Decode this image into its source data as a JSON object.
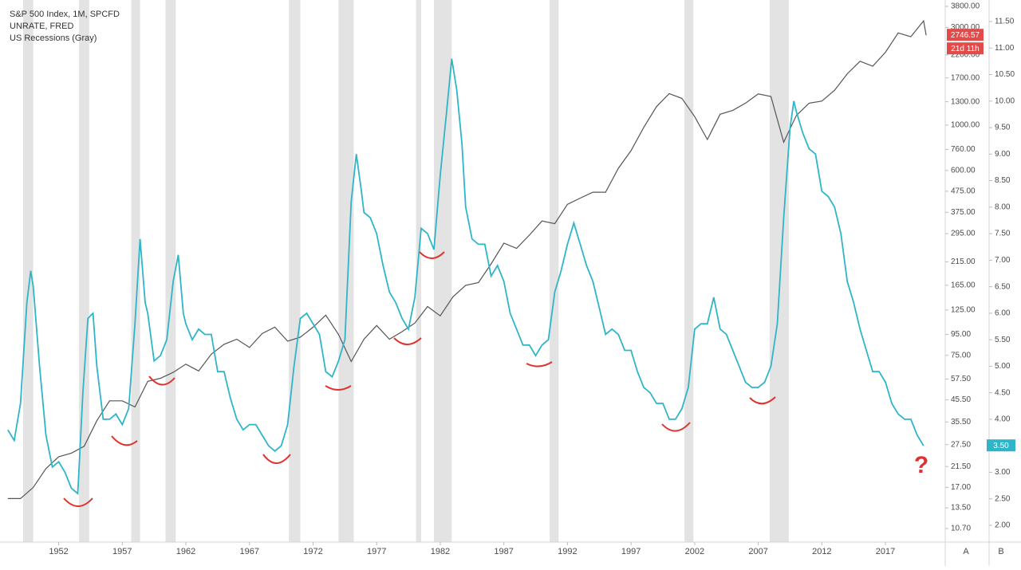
{
  "chart_data": {
    "type": "line",
    "legend": [
      "S&P 500 Index, 1M, SPCFD",
      "UNRATE, FRED",
      "US Recessions (Gray)"
    ],
    "log_scale": true,
    "grid": false,
    "xlim": [
      1947.7,
      2021.7
    ],
    "xticks": [
      1952,
      1957,
      1962,
      1967,
      1972,
      1977,
      1982,
      1987,
      1992,
      1997,
      2002,
      2007,
      2012,
      2017
    ],
    "ylim": [
      9.19,
      4082
    ],
    "yticks": [
      {
        "value": 3800,
        "label": "3800.00"
      },
      {
        "value": 3000,
        "label": "3000.00"
      },
      {
        "value": 2200,
        "label": "2200.00"
      },
      {
        "value": 1700,
        "label": "1700.00"
      },
      {
        "value": 1300,
        "label": "1300.00"
      },
      {
        "value": 1000,
        "label": "1000.00"
      },
      {
        "value": 760,
        "label": "760.00"
      },
      {
        "value": 600,
        "label": "600.00"
      },
      {
        "value": 475,
        "label": "475.00"
      },
      {
        "value": 375,
        "label": "375.00"
      },
      {
        "value": 295,
        "label": "295.00"
      },
      {
        "value": 215,
        "label": "215.00"
      },
      {
        "value": 165,
        "label": "165.00"
      },
      {
        "value": 125,
        "label": "125.00"
      },
      {
        "value": 95,
        "label": "95.00"
      },
      {
        "value": 75,
        "label": "75.00"
      },
      {
        "value": 57.5,
        "label": "57.50"
      },
      {
        "value": 45.5,
        "label": "45.50"
      },
      {
        "value": 35.5,
        "label": "35.50"
      },
      {
        "value": 27.5,
        "label": "27.50"
      },
      {
        "value": 21.5,
        "label": "21.50"
      },
      {
        "value": 17,
        "label": "17.00"
      },
      {
        "value": 13.5,
        "label": "13.50"
      },
      {
        "value": 10.7,
        "label": "10.70"
      }
    ],
    "y2lim": [
      1.684,
      11.906
    ],
    "y2ticks": [
      {
        "value": 11.5,
        "label": "11.50"
      },
      {
        "value": 11,
        "label": "11.00"
      },
      {
        "value": 10.5,
        "label": "10.50"
      },
      {
        "value": 10,
        "label": "10.00"
      },
      {
        "value": 9.5,
        "label": "9.50"
      },
      {
        "value": 9,
        "label": "9.00"
      },
      {
        "value": 8.5,
        "label": "8.50"
      },
      {
        "value": 8,
        "label": "8.00"
      },
      {
        "value": 7.5,
        "label": "7.50"
      },
      {
        "value": 7,
        "label": "7.00"
      },
      {
        "value": 6.5,
        "label": "6.50"
      },
      {
        "value": 6,
        "label": "6.00"
      },
      {
        "value": 5.5,
        "label": "5.50"
      },
      {
        "value": 5,
        "label": "5.00"
      },
      {
        "value": 4.5,
        "label": "4.50"
      },
      {
        "value": 4,
        "label": "4.00"
      },
      {
        "value": 3.5,
        "label": "3.50"
      },
      {
        "value": 3,
        "label": "3.00"
      },
      {
        "value": 2.5,
        "label": "2.50"
      },
      {
        "value": 2,
        "label": "2.00"
      }
    ],
    "axis_buttons": [
      "A",
      "B"
    ],
    "recession_color": "#e3e3e3",
    "recessions": [
      [
        1949.2,
        1950.0
      ],
      [
        1953.6,
        1954.4
      ],
      [
        1957.7,
        1958.4
      ],
      [
        1960.4,
        1961.2
      ],
      [
        1970.1,
        1971.0
      ],
      [
        1974.0,
        1975.2
      ],
      [
        1980.1,
        1980.5
      ],
      [
        1981.5,
        1982.9
      ],
      [
        1990.6,
        1991.3
      ],
      [
        2001.2,
        2001.9
      ],
      [
        2007.9,
        2009.4
      ]
    ],
    "annotations": [
      "?"
    ],
    "series": [
      {
        "name": "S&P 500 Index, 1M, SPCFD",
        "color": "#555555",
        "countdown": "21d 11h",
        "x": [
          1948,
          1949,
          1950,
          1951,
          1952,
          1953,
          1954,
          1955,
          1956,
          1957,
          1958,
          1959,
          1960,
          1961,
          1962,
          1963,
          1964,
          1965,
          1966,
          1967,
          1968,
          1969,
          1970,
          1971,
          1972,
          1973,
          1974,
          1975,
          1976,
          1977,
          1978,
          1979,
          1980,
          1981,
          1982,
          1983,
          1984,
          1985,
          1986,
          1987,
          1988,
          1989,
          1990,
          1991,
          1992,
          1993,
          1994,
          1995,
          1996,
          1997,
          1998,
          1999,
          2000,
          2001,
          2002,
          2003,
          2004,
          2005,
          2006,
          2007,
          2008,
          2009,
          2010,
          2011,
          2012,
          2013,
          2014,
          2015,
          2016,
          2017,
          2018,
          2019,
          2020,
          2020.2
        ],
        "values": [
          15,
          15,
          17,
          21,
          24,
          25,
          27,
          36,
          45,
          45,
          42,
          56,
          58,
          62,
          68,
          63,
          76,
          85,
          90,
          82,
          96,
          103,
          88,
          92,
          103,
          118,
          95,
          70,
          90,
          105,
          90,
          98,
          108,
          130,
          117,
          145,
          165,
          170,
          210,
          265,
          250,
          290,
          340,
          330,
          410,
          440,
          470,
          470,
          615,
          750,
          975,
          1230,
          1425,
          1350,
          1100,
          850,
          1130,
          1180,
          1280,
          1420,
          1380,
          825,
          1115,
          1280,
          1310,
          1480,
          1780,
          2050,
          1940,
          2270,
          2820,
          2700,
          3230,
          2746.57
        ]
      },
      {
        "name": "UNRATE, FRED",
        "color": "#2fb5c8",
        "axis": "y2",
        "last_value_label": "3.50",
        "x": [
          1948.0,
          1948.5,
          1949.0,
          1949.5,
          1949.8,
          1950.0,
          1950.5,
          1951.0,
          1951.5,
          1952.0,
          1952.5,
          1953.0,
          1953.5,
          1953.9,
          1954.3,
          1954.7,
          1955.0,
          1955.5,
          1956.0,
          1956.5,
          1957.0,
          1957.5,
          1958.0,
          1958.4,
          1958.8,
          1959.0,
          1959.5,
          1960.0,
          1960.5,
          1961.0,
          1961.4,
          1961.8,
          1962.0,
          1962.5,
          1963.0,
          1963.5,
          1964.0,
          1964.5,
          1965.0,
          1965.5,
          1966.0,
          1966.5,
          1967.0,
          1967.5,
          1968.0,
          1968.5,
          1969.0,
          1969.5,
          1970.0,
          1970.5,
          1971.0,
          1971.5,
          1972.0,
          1972.5,
          1973.0,
          1973.5,
          1974.0,
          1974.5,
          1975.0,
          1975.4,
          1975.8,
          1976.0,
          1976.5,
          1977.0,
          1977.5,
          1978.0,
          1978.5,
          1979.0,
          1979.5,
          1980.0,
          1980.5,
          1981.0,
          1981.5,
          1982.0,
          1982.5,
          1982.9,
          1983.3,
          1983.7,
          1984.0,
          1984.5,
          1985.0,
          1985.5,
          1986.0,
          1986.5,
          1987.0,
          1987.5,
          1988.0,
          1988.5,
          1989.0,
          1989.5,
          1990.0,
          1990.5,
          1991.0,
          1991.5,
          1992.0,
          1992.5,
          1993.0,
          1993.5,
          1994.0,
          1994.5,
          1995.0,
          1995.5,
          1996.0,
          1996.5,
          1997.0,
          1997.5,
          1998.0,
          1998.5,
          1999.0,
          1999.5,
          2000.0,
          2000.5,
          2001.0,
          2001.5,
          2002.0,
          2002.5,
          2003.0,
          2003.5,
          2004.0,
          2004.5,
          2005.0,
          2005.5,
          2006.0,
          2006.5,
          2007.0,
          2007.5,
          2008.0,
          2008.5,
          2009.0,
          2009.5,
          2009.8,
          2010.0,
          2010.5,
          2011.0,
          2011.5,
          2012.0,
          2012.5,
          2013.0,
          2013.5,
          2014.0,
          2014.5,
          2015.0,
          2015.5,
          2016.0,
          2016.5,
          2017.0,
          2017.5,
          2018.0,
          2018.5,
          2019.0,
          2019.5,
          2020.0
        ],
        "values": [
          3.8,
          3.6,
          4.3,
          6.2,
          6.8,
          6.5,
          5.0,
          3.7,
          3.1,
          3.2,
          3.0,
          2.7,
          2.6,
          4.5,
          5.9,
          6.0,
          5.0,
          4.0,
          4.0,
          4.1,
          3.9,
          4.2,
          5.8,
          7.4,
          6.2,
          6.0,
          5.1,
          5.2,
          5.5,
          6.6,
          7.1,
          6.0,
          5.8,
          5.5,
          5.7,
          5.6,
          5.6,
          4.9,
          4.9,
          4.4,
          4.0,
          3.8,
          3.9,
          3.9,
          3.7,
          3.5,
          3.4,
          3.5,
          3.9,
          5.0,
          5.9,
          6.0,
          5.8,
          5.6,
          4.9,
          4.8,
          5.1,
          5.5,
          8.1,
          9.0,
          8.3,
          7.9,
          7.8,
          7.5,
          6.9,
          6.4,
          6.2,
          5.9,
          5.7,
          6.3,
          7.6,
          7.5,
          7.2,
          8.6,
          9.8,
          10.8,
          10.2,
          9.2,
          8.0,
          7.4,
          7.3,
          7.3,
          6.7,
          6.9,
          6.6,
          6.0,
          5.7,
          5.4,
          5.4,
          5.2,
          5.4,
          5.5,
          6.4,
          6.8,
          7.3,
          7.7,
          7.3,
          6.9,
          6.6,
          6.1,
          5.6,
          5.7,
          5.6,
          5.3,
          5.3,
          4.9,
          4.6,
          4.5,
          4.3,
          4.3,
          4.0,
          4.0,
          4.2,
          4.6,
          5.7,
          5.8,
          5.8,
          6.3,
          5.7,
          5.6,
          5.3,
          5.0,
          4.7,
          4.6,
          4.6,
          4.7,
          5.0,
          5.8,
          7.8,
          9.5,
          10.0,
          9.8,
          9.4,
          9.1,
          9.0,
          8.3,
          8.2,
          8.0,
          7.5,
          6.6,
          6.2,
          5.7,
          5.3,
          4.9,
          4.9,
          4.7,
          4.3,
          4.1,
          4.0,
          4.0,
          3.7,
          3.5
        ]
      }
    ]
  }
}
